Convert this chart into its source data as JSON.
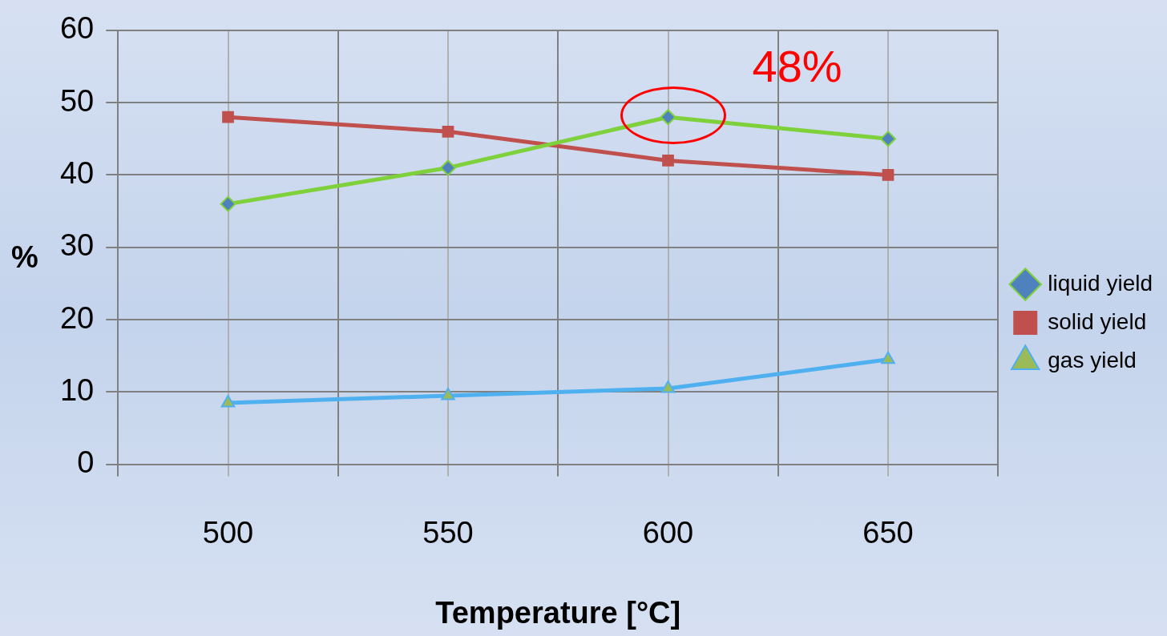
{
  "chart_data": {
    "type": "line",
    "xlabel": "Temperature [°C]",
    "ylabel": "%",
    "x": [
      500,
      550,
      600,
      650
    ],
    "series": [
      {
        "name": "liquid yield",
        "color": "#7fd13b",
        "marker": "diamond",
        "values": [
          36,
          41,
          48,
          45
        ]
      },
      {
        "name": "solid yield",
        "color": "#c0504d",
        "marker": "square",
        "values": [
          48,
          46,
          42,
          40
        ]
      },
      {
        "name": "gas yield",
        "color": "#4fb0f0",
        "marker": "triangle",
        "values": [
          8.5,
          9.5,
          10.5,
          14.5
        ]
      }
    ],
    "xlim": [
      475,
      675
    ],
    "xticks": [
      {
        "value": 475,
        "label": null
      },
      500,
      {
        "value": 525,
        "label": null
      },
      550,
      {
        "value": 575,
        "label": null
      },
      600,
      {
        "value": 625,
        "label": null
      },
      650,
      {
        "value": 675,
        "label": null
      }
    ],
    "ylim": [
      0,
      60
    ],
    "yticks": [
      0,
      10,
      20,
      30,
      40,
      50,
      60
    ],
    "grid": true,
    "legend": "right",
    "line_style": "solid",
    "annotations": [
      {
        "text": "48%",
        "x": 600,
        "y": 48
      }
    ]
  }
}
